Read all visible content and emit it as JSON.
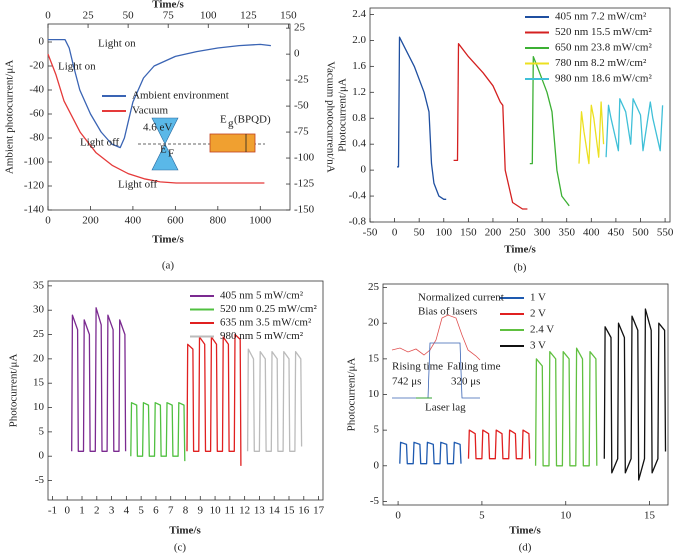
{
  "chart_data": [
    {
      "type": "line",
      "caption": "(a)",
      "xlabel": "Time/s",
      "ylabel": "Ambient photocurrent/μA",
      "x2label": "Time/s",
      "y2label": "Vacuum photocurrent/nA",
      "xlim": [
        0,
        1140
      ],
      "xticks": [
        0,
        200,
        400,
        600,
        800,
        1000
      ],
      "x2lim": [
        0,
        151
      ],
      "x2ticks": [
        0,
        25,
        50,
        75,
        100,
        125,
        150
      ],
      "ylim": [
        -140,
        15
      ],
      "yticks": [
        0,
        -20,
        -40,
        -60,
        -80,
        -100,
        -120,
        -140
      ],
      "y2lim": [
        -150,
        29
      ],
      "y2ticks": [
        25,
        0,
        -25,
        -50,
        -75,
        -100,
        -125,
        -150
      ],
      "legend": "center",
      "series": [
        {
          "name": "Ambient environment",
          "color": "#3a64b4",
          "x": [
            0,
            80,
            100,
            120,
            150,
            200,
            250,
            300,
            340,
            360,
            400,
            450,
            500,
            600,
            700,
            800,
            900,
            1000,
            1050
          ],
          "values": [
            2,
            2,
            -5,
            -20,
            -40,
            -60,
            -75,
            -85,
            -88,
            -80,
            -50,
            -30,
            -20,
            -12,
            -8,
            -5,
            -3,
            -2,
            -3
          ]
        },
        {
          "name": "Vacuum",
          "color": "#e53a3a",
          "axis": "y2",
          "xaxis": "x2",
          "x": [
            0,
            5,
            10,
            20,
            30,
            40,
            50,
            60,
            70,
            80,
            100,
            120,
            135
          ],
          "values": [
            0,
            -20,
            -45,
            -75,
            -95,
            -107,
            -115,
            -120,
            -123,
            -124,
            -124,
            -124,
            -124
          ]
        }
      ],
      "annotations": [
        "Light on",
        "Light on",
        "Light off",
        "Light off",
        "4.6 eV",
        "E",
        "F",
        "E",
        "g",
        "(BPQD)"
      ]
    },
    {
      "type": "line",
      "caption": "(b)",
      "xlabel": "Time/s",
      "ylabel": "Photocurrent/μA",
      "xlim": [
        -50,
        560
      ],
      "xticks": [
        -50,
        0,
        50,
        100,
        150,
        200,
        250,
        300,
        350,
        400,
        450,
        500,
        550
      ],
      "ylim": [
        -0.8,
        2.5
      ],
      "yticks": [
        -0.8,
        -0.4,
        0,
        0.4,
        0.8,
        1.2,
        1.6,
        {
          "value": 2,
          "label": "2.0"
        },
        2.4
      ],
      "legend": "upper right",
      "series": [
        {
          "name": "405 nm 7.2 mW/cm²",
          "color": "#1f4fa0",
          "x": [
            5,
            8,
            10,
            20,
            40,
            60,
            70,
            75,
            80,
            90,
            100,
            105
          ],
          "values": [
            0.05,
            0.05,
            2.05,
            1.9,
            1.6,
            1.2,
            0.9,
            0.1,
            -0.2,
            -0.4,
            -0.45,
            -0.45
          ]
        },
        {
          "name": "520 nm 15.5 mW/cm²",
          "color": "#d42020",
          "x": [
            120,
            128,
            130,
            150,
            180,
            200,
            215,
            220,
            225,
            240,
            260,
            270
          ],
          "values": [
            0.15,
            0.15,
            1.95,
            1.75,
            1.5,
            1.3,
            1.05,
            1.0,
            0,
            -0.5,
            -0.6,
            -0.6
          ]
        },
        {
          "name": "650 nm 23.8 mW/cm²",
          "color": "#3cb034",
          "x": [
            275,
            280,
            282,
            290,
            300,
            310,
            320,
            330,
            340,
            350,
            355
          ],
          "values": [
            0.1,
            0.1,
            1.75,
            1.6,
            1.4,
            1.2,
            0.9,
            0,
            -0.4,
            -0.5,
            -0.55
          ]
        },
        {
          "name": "780 nm 8.2 mW/cm²",
          "color": "#ece020",
          "x": [
            375,
            380,
            385,
            395,
            400,
            405,
            415,
            420,
            425
          ],
          "values": [
            0.1,
            0.9,
            0.6,
            0.1,
            1.0,
            0.8,
            0.2,
            1.05,
            0.4
          ]
        },
        {
          "name": "980 nm 18.6 mW/cm²",
          "color": "#40c0d8",
          "x": [
            430,
            435,
            440,
            455,
            458,
            470,
            480,
            485,
            500,
            505,
            520,
            525,
            540,
            545
          ],
          "values": [
            0.2,
            1.0,
            0.8,
            0.3,
            1.1,
            0.9,
            0.4,
            1.1,
            0.85,
            0.3,
            1.05,
            0.8,
            0.3,
            1.0
          ]
        }
      ]
    },
    {
      "type": "line",
      "caption": "(c)",
      "xlabel": "Time/s",
      "ylabel": "Photocurrent/μA",
      "xlim": [
        -1.3,
        17.3
      ],
      "xticks": [
        -1,
        0,
        1,
        2,
        3,
        4,
        5,
        6,
        7,
        8,
        9,
        10,
        11,
        12,
        13,
        14,
        15,
        16,
        17
      ],
      "ylim": [
        -9,
        36
      ],
      "yticks": [
        -5,
        0,
        5,
        10,
        15,
        20,
        25,
        30,
        35
      ],
      "legend": "upper right",
      "series": [
        {
          "name": "405 nm 5 mW/cm²",
          "color": "#7b2a90",
          "x": [
            0.3,
            0.35,
            0.7,
            0.75,
            1.1,
            1.15,
            1.5,
            1.55,
            1.9,
            1.95,
            2.3,
            2.35,
            2.7,
            2.75,
            3.1,
            3.15,
            3.5,
            3.55,
            3.9,
            3.95
          ],
          "values": [
            1,
            29,
            26,
            1,
            1,
            28,
            25,
            1,
            1,
            30.5,
            27,
            1,
            1,
            29,
            26,
            1,
            1,
            28,
            25,
            1
          ]
        },
        {
          "name": "520 nm 0.25 mW/cm²",
          "color": "#50c040",
          "x": [
            4.3,
            4.35,
            4.7,
            4.75,
            5.1,
            5.15,
            5.5,
            5.55,
            5.9,
            5.95,
            6.3,
            6.35,
            6.7,
            6.75,
            7.1,
            7.15,
            7.5,
            7.55,
            7.9,
            7.95
          ],
          "values": [
            0,
            11,
            10.5,
            0,
            0,
            11,
            10.5,
            0,
            0,
            11,
            10.5,
            0,
            0,
            11,
            10.5,
            0,
            0,
            11,
            10.5,
            -1
          ]
        },
        {
          "name": "635 nm 3.5 mW/cm²",
          "color": "#e02020",
          "x": [
            8.1,
            8.15,
            8.5,
            8.55,
            8.9,
            8.95,
            9.3,
            9.35,
            9.7,
            9.75,
            10.1,
            10.15,
            10.5,
            10.55,
            10.9,
            10.95,
            11.3,
            11.35,
            11.7,
            11.75
          ],
          "values": [
            1,
            23,
            22,
            1,
            1,
            24.5,
            23,
            1,
            1,
            24.5,
            23,
            1,
            1,
            24.5,
            23,
            1,
            1,
            25,
            24,
            -2
          ]
        },
        {
          "name": "980 nm 5 mW/cm²",
          "color": "#bbbbbb",
          "x": [
            12.2,
            12.25,
            12.6,
            12.65,
            13.0,
            13.05,
            13.4,
            13.45,
            13.8,
            13.85,
            14.2,
            14.25,
            14.6,
            14.65,
            15.0,
            15.05,
            15.4,
            15.45,
            15.8,
            15.85
          ],
          "values": [
            1,
            22,
            20,
            1,
            1,
            21.5,
            20,
            1,
            1,
            21.5,
            20,
            1,
            1,
            21.5,
            20,
            1,
            1,
            21.5,
            20,
            2
          ]
        }
      ]
    },
    {
      "type": "line",
      "caption": "(d)",
      "xlabel": "Time/s",
      "ylabel": "Photocurrent/μA",
      "xlim": [
        -0.9,
        16.1
      ],
      "xticks": [
        0,
        5,
        10,
        15
      ],
      "ylim": [
        -5.5,
        25.5
      ],
      "yticks": [
        -5,
        0,
        5,
        10,
        15,
        20,
        25
      ],
      "legend": "upper center",
      "series": [
        {
          "name": "1 V",
          "color": "#1e5ab0",
          "x": [
            0.1,
            0.15,
            0.5,
            0.55,
            0.9,
            0.95,
            1.3,
            1.35,
            1.7,
            1.75,
            2.1,
            2.15,
            2.5,
            2.55,
            2.9,
            2.95,
            3.3,
            3.35,
            3.7,
            3.75
          ],
          "values": [
            0.3,
            3.3,
            3,
            0.3,
            0.3,
            3.3,
            3,
            0.3,
            0.3,
            3.3,
            3,
            0.3,
            0.3,
            3.3,
            3,
            0.3,
            0.3,
            3.3,
            3,
            0.3
          ]
        },
        {
          "name": "2 V",
          "color": "#e02020",
          "x": [
            4.2,
            4.25,
            4.6,
            4.65,
            5.0,
            5.05,
            5.4,
            5.45,
            5.8,
            5.85,
            6.2,
            6.25,
            6.6,
            6.65,
            7.0,
            7.05,
            7.4,
            7.45,
            7.8,
            7.85
          ],
          "values": [
            1,
            5,
            4.5,
            1,
            1,
            5,
            4.5,
            1,
            1,
            5,
            4.5,
            1,
            1,
            5,
            4.5,
            1,
            1,
            5,
            4.5,
            1
          ]
        },
        {
          "name": "2.4 V",
          "color": "#60c040",
          "x": [
            8.2,
            8.25,
            8.6,
            8.65,
            9.0,
            9.05,
            9.4,
            9.45,
            9.8,
            9.85,
            10.2,
            10.25,
            10.6,
            10.65,
            11.0,
            11.05,
            11.4,
            11.45,
            11.8,
            11.85
          ],
          "values": [
            0,
            15,
            14,
            0,
            0,
            16,
            15,
            0,
            0,
            16,
            15,
            0,
            0,
            16.5,
            15,
            0,
            0,
            16,
            15,
            0
          ]
        },
        {
          "name": "3 V",
          "color": "#111111",
          "x": [
            12.3,
            12.35,
            12.7,
            12.75,
            13.1,
            13.15,
            13.5,
            13.55,
            13.9,
            13.95,
            14.3,
            14.35,
            14.7,
            14.75,
            15.1,
            15.15,
            15.5,
            15.55,
            15.9,
            15.95
          ],
          "values": [
            1,
            19.5,
            18,
            -1,
            1,
            20,
            18,
            -1,
            1,
            21,
            19,
            -2,
            1,
            22,
            19,
            -1,
            1,
            20,
            19,
            2
          ]
        }
      ],
      "annotations": [
        "Normalized current",
        "Bias of lasers",
        "Rising time",
        "742 μs",
        "Falling time",
        "320 μs",
        "Laser lag"
      ]
    }
  ]
}
